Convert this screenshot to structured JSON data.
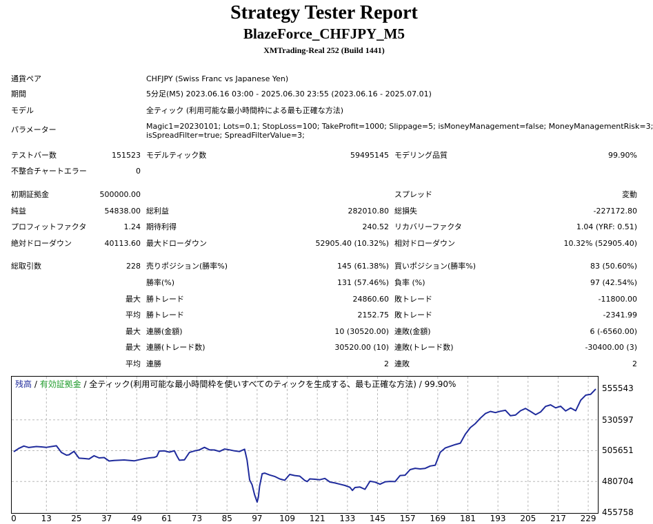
{
  "header": {
    "title": "Strategy Tester Report",
    "subtitle": "BlazeForce_CHFJPY_M5",
    "server": "XMTrading-Real 252 (Build 1441)"
  },
  "info": {
    "pair_label": "通貨ペア",
    "pair_value": "CHFJPY (Swiss Franc vs Japanese Yen)",
    "period_label": "期間",
    "period_value": "5分足(M5) 2023.06.16 03:00 - 2025.06.30 23:55 (2023.06.16 - 2025.07.01)",
    "model_label": "モデル",
    "model_value": "全ティック (利用可能な最小時間枠による最も正確な方法)",
    "params_label": "パラメーター",
    "params_line1": "Magic1=20230101; Lots=0.1; StopLoss=100; TakeProfit=1000; Slippage=5; isMoneyManagement=false; MoneyManagementRisk=3;",
    "params_line2": "isSpreadFilter=true; SpreadFilterValue=3;"
  },
  "stats": {
    "bars_label": "テストバー数",
    "bars_value": "151523",
    "ticks_label": "モデルティック数",
    "ticks_value": "59495145",
    "quality_label": "モデリング品質",
    "quality_value": "99.90%",
    "errors_label": "不整合チャートエラー",
    "errors_value": "0",
    "deposit_label": "初期証拠金",
    "deposit_value": "500000.00",
    "spread_label": "スプレッド",
    "spread_value": "変動",
    "net_label": "純益",
    "net_value": "54838.00",
    "gross_profit_label": "総利益",
    "gross_profit_value": "282010.80",
    "gross_loss_label": "総損失",
    "gross_loss_value": "-227172.80",
    "pf_label": "プロフィットファクタ",
    "pf_value": "1.24",
    "expected_label": "期待利得",
    "expected_value": "240.52",
    "recovery_label": "リカバリーファクタ",
    "recovery_value": "1.04 (YRF: 0.51)",
    "abs_dd_label": "絶対ドローダウン",
    "abs_dd_value": "40113.60",
    "max_dd_label": "最大ドローダウン",
    "max_dd_value": "52905.40 (10.32%)",
    "rel_dd_label": "相対ドローダウン",
    "rel_dd_value": "10.32% (52905.40)",
    "trades_label": "総取引数",
    "trades_value": "228",
    "short_label": "売りポジション(勝率%)",
    "short_value": "145 (61.38%)",
    "long_label": "買いポジション(勝率%)",
    "long_value": "83 (50.60%)",
    "winrate_label": "勝率(%)",
    "winrate_value": "131 (57.46%)",
    "lossrate_label": "負率 (%)",
    "lossrate_value": "97 (42.54%)",
    "max_label": "最大",
    "avg_label": "平均",
    "win_trade_label": "勝トレード",
    "loss_trade_label": "敗トレード",
    "max_win_value": "24860.60",
    "max_loss_value": "-11800.00",
    "avg_win_value": "2152.75",
    "avg_loss_value": "-2341.99",
    "consec_win_amt_label": "連勝(金額)",
    "consec_win_amt_value": "10 (30520.00)",
    "consec_loss_amt_label": "連敗(金額)",
    "consec_loss_amt_value": "6 (-6560.00)",
    "consec_win_trd_label": "連勝(トレード数)",
    "consec_win_trd_value": "30520.00 (10)",
    "consec_loss_trd_label": "連敗(トレード数)",
    "consec_loss_trd_value": "-30400.00 (3)",
    "avg_consec_win_label": "連勝",
    "avg_consec_win_value": "2",
    "avg_consec_loss_label": "連敗",
    "avg_consec_loss_value": "2"
  },
  "chart_data": {
    "type": "line",
    "legend_balance": "残高",
    "legend_sep1": " / ",
    "legend_equity": "有効証拠金",
    "legend_rest": " / 全ティック(利用可能な最小時間枠を使いすべてのティックを生成する、最も正確な方法) / 99.90%",
    "ylim": [
      455758,
      555543
    ],
    "yticks": [
      "555543",
      "530597",
      "505651",
      "480704",
      "455758"
    ],
    "xticks": [
      "0",
      "13",
      "25",
      "37",
      "49",
      "61",
      "73",
      "85",
      "97",
      "109",
      "121",
      "133",
      "145",
      "157",
      "169",
      "181",
      "193",
      "205",
      "217",
      "229"
    ],
    "xlim": [
      0,
      232
    ],
    "grid": true,
    "line_color": "#1f2b9c",
    "series": [
      {
        "x": [
          0,
          2,
          4,
          6,
          9,
          11,
          13,
          15,
          17,
          19,
          21,
          22,
          24,
          26,
          28,
          30,
          32,
          34,
          36,
          38,
          40,
          42,
          44,
          46,
          48,
          50,
          52,
          54,
          56,
          57,
          58,
          60,
          62,
          64,
          65,
          66,
          68,
          70,
          72,
          74,
          76,
          78,
          80,
          82,
          84,
          86,
          88,
          90,
          92,
          93,
          94,
          95,
          96,
          97,
          97.5,
          98,
          99,
          100,
          102,
          104,
          106,
          108,
          110,
          112,
          114,
          116,
          117,
          118,
          120,
          122,
          124,
          126,
          128,
          130,
          132,
          134,
          135,
          136,
          138,
          140,
          142,
          144,
          146,
          148,
          150,
          152,
          154,
          156,
          158,
          160,
          162,
          164,
          166,
          168,
          170,
          172,
          174,
          176,
          178,
          180,
          182,
          184,
          186,
          188,
          190,
          192,
          194,
          196,
          198,
          200,
          202,
          204,
          206,
          208,
          210,
          212,
          214,
          216,
          218,
          220,
          222,
          224,
          226,
          228,
          230,
          232
        ],
        "y": [
          504800,
          507500,
          509400,
          508200,
          509000,
          508700,
          508300,
          509000,
          509600,
          504200,
          502000,
          502300,
          505100,
          499600,
          499300,
          498900,
          501500,
          499800,
          500100,
          497300,
          497700,
          497900,
          498100,
          497800,
          497400,
          498300,
          499200,
          499800,
          500200,
          501000,
          505300,
          505500,
          504500,
          505600,
          501400,
          497900,
          498200,
          504200,
          505400,
          506300,
          508300,
          506300,
          506200,
          505000,
          507000,
          506300,
          505500,
          505000,
          506800,
          498000,
          482000,
          478000,
          470000,
          464000,
          468000,
          477000,
          487000,
          487500,
          486000,
          484800,
          482800,
          481700,
          486400,
          485500,
          485000,
          481500,
          480700,
          482800,
          482500,
          482100,
          483200,
          480300,
          479500,
          478500,
          477500,
          476000,
          473500,
          475800,
          476200,
          474400,
          480900,
          480200,
          478500,
          480400,
          480800,
          480600,
          485500,
          485800,
          490300,
          491400,
          490900,
          491300,
          493200,
          493900,
          504300,
          507800,
          509200,
          510600,
          511700,
          519000,
          524300,
          527600,
          532000,
          535700,
          537400,
          536500,
          537600,
          538300,
          533900,
          534500,
          538000,
          539800,
          537400,
          534800,
          537000,
          541500,
          542700,
          540300,
          541600,
          537800,
          540200,
          538000,
          546500,
          550600,
          551300,
          555600
        ]
      }
    ]
  }
}
